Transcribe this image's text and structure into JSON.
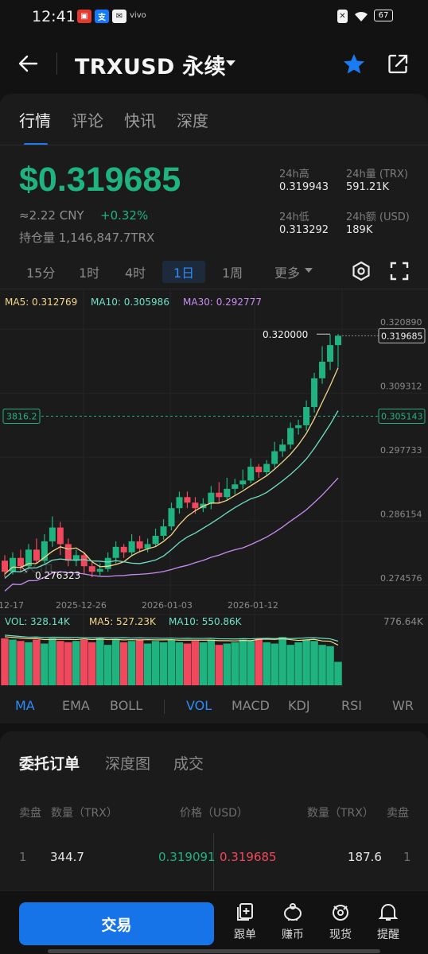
{
  "status_bar": {
    "time": "12:41",
    "notif_icons": [
      "app-icon-red",
      "alipay-icon",
      "mail-icon",
      "vivo-icon"
    ],
    "battery": "67"
  },
  "header": {
    "title": "TRXUSD 永续",
    "back_icon": "back-arrow-icon",
    "favorite_icon": "star-icon",
    "share_icon": "share-icon"
  },
  "tabs": [
    "行情",
    "评论",
    "快讯",
    "深度"
  ],
  "ticker": {
    "price": "$0.319685",
    "cny": "≈2.22 CNY",
    "change": "+0.32%",
    "open_interest": "持仓量 1,146,847.7TRX",
    "stats": {
      "high_label": "24h高",
      "high_value": "0.319943",
      "vol_trx_label": "24h量 (TRX)",
      "vol_trx_value": "591.21K",
      "low_label": "24h低",
      "low_value": "0.313292",
      "vol_usd_label": "24h额 (USD)",
      "vol_usd_value": "189K"
    }
  },
  "timeframes": [
    "15分",
    "1时",
    "4时",
    "1日",
    "1周",
    "更多"
  ],
  "active_timeframe": "1日",
  "chart_data": {
    "type": "candlestick",
    "ma_legend": {
      "ma5": "MA5: 0.312769",
      "ma10": "MA10: 0.305986",
      "ma30": "MA30: 0.292777"
    },
    "ma_colors": {
      "ma5": "#f5d78a",
      "ma10": "#6fe0c4",
      "ma30": "#c88cf0"
    },
    "y_ticks": [
      "0.320890",
      "0.309312",
      "0.297733",
      "0.286154",
      "0.274576"
    ],
    "y_range": [
      0.274576,
      0.32089
    ],
    "x_ticks": [
      "12-17",
      "2025-12-26",
      "2026-01-03",
      "2026-01-12"
    ],
    "current_price_tag": "0.319685",
    "crosshair_price_tag": "0.305143",
    "crosshair_left_tag": "3816.2",
    "high_annotation": "0.320000",
    "low_annotation": "0.276323",
    "watermark": "火币",
    "candles": [
      [
        0.279,
        0.277,
        0.28,
        0.276
      ],
      [
        0.277,
        0.2795,
        0.2805,
        0.2765
      ],
      [
        0.2795,
        0.278,
        0.281,
        0.277
      ],
      [
        0.278,
        0.281,
        0.282,
        0.2775
      ],
      [
        0.281,
        0.279,
        0.283,
        0.2785
      ],
      [
        0.279,
        0.2825,
        0.2838,
        0.2785
      ],
      [
        0.2825,
        0.285,
        0.287,
        0.2815
      ],
      [
        0.285,
        0.282,
        0.286,
        0.28
      ],
      [
        0.282,
        0.279,
        0.283,
        0.278
      ],
      [
        0.279,
        0.28,
        0.281,
        0.278
      ],
      [
        0.28,
        0.278,
        0.2805,
        0.2765
      ],
      [
        0.278,
        0.277,
        0.279,
        0.276
      ],
      [
        0.277,
        0.2775,
        0.2785,
        0.2763
      ],
      [
        0.2775,
        0.2795,
        0.2805,
        0.277
      ],
      [
        0.2795,
        0.2815,
        0.2825,
        0.2785
      ],
      [
        0.2815,
        0.2805,
        0.282,
        0.2795
      ],
      [
        0.2805,
        0.2825,
        0.2838,
        0.28
      ],
      [
        0.2825,
        0.2812,
        0.2835,
        0.2805
      ],
      [
        0.2812,
        0.282,
        0.283,
        0.2805
      ],
      [
        0.282,
        0.2835,
        0.2848,
        0.2815
      ],
      [
        0.2835,
        0.2852,
        0.2865,
        0.2828
      ],
      [
        0.2852,
        0.2885,
        0.2895,
        0.2845
      ],
      [
        0.2885,
        0.2905,
        0.2915,
        0.2875
      ],
      [
        0.2905,
        0.2895,
        0.2915,
        0.2885
      ],
      [
        0.2895,
        0.2885,
        0.2905,
        0.2875
      ],
      [
        0.2885,
        0.2893,
        0.2903,
        0.2878
      ],
      [
        0.2893,
        0.2913,
        0.2925,
        0.2883
      ],
      [
        0.2913,
        0.2905,
        0.2932,
        0.2895
      ],
      [
        0.2905,
        0.292,
        0.294,
        0.29
      ],
      [
        0.292,
        0.2928,
        0.2938,
        0.291
      ],
      [
        0.2928,
        0.2935,
        0.2955,
        0.292
      ],
      [
        0.2935,
        0.296,
        0.2975,
        0.293
      ],
      [
        0.296,
        0.295,
        0.2965,
        0.294
      ],
      [
        0.295,
        0.2965,
        0.2972,
        0.2943
      ],
      [
        0.2965,
        0.2988,
        0.3005,
        0.2958
      ],
      [
        0.2988,
        0.3,
        0.301,
        0.2978
      ],
      [
        0.3,
        0.303,
        0.304,
        0.2992
      ],
      [
        0.303,
        0.3035,
        0.3045,
        0.3018
      ],
      [
        0.3035,
        0.3068,
        0.308,
        0.3025
      ],
      [
        0.3068,
        0.312,
        0.313,
        0.3058
      ],
      [
        0.312,
        0.315,
        0.3178,
        0.311
      ],
      [
        0.315,
        0.318,
        0.3199,
        0.3135
      ],
      [
        0.318,
        0.3197,
        0.32,
        0.314
      ]
    ],
    "volume": {
      "legend_vol": "VOL: 328.14K",
      "legend_ma5": "MA5: 527.23K",
      "legend_ma10": "MA10: 550.86K",
      "max_label": "776.64K"
    }
  },
  "indicators": {
    "main": [
      "MA",
      "EMA",
      "BOLL"
    ],
    "sub": [
      "VOL",
      "MACD",
      "KDJ",
      "RSI",
      "WR"
    ],
    "active_main": "MA",
    "active_sub": "VOL"
  },
  "orders": {
    "tabs": [
      "委托订单",
      "深度图",
      "成交"
    ],
    "headers": {
      "sell_side": "卖盘",
      "qty_left": "数量（TRX）",
      "price": "价格（USD）",
      "qty_right": "数量（TRX）",
      "buy_side": "卖盘"
    },
    "row1": {
      "idx_left": "1",
      "qty_left": "344.7",
      "bid": "0.319091",
      "ask": "0.319685",
      "qty_right": "187.6",
      "idx_right": "1"
    }
  },
  "bottom_bar": {
    "trade": "交易",
    "nav": [
      {
        "label": "跟单",
        "icon": "copy-trade-icon"
      },
      {
        "label": "赚币",
        "icon": "piggy-bank-icon"
      },
      {
        "label": "现货",
        "icon": "spot-icon"
      },
      {
        "label": "提醒",
        "icon": "bell-icon"
      }
    ]
  },
  "colors": {
    "up": "#1fb37f",
    "down": "#f0485c",
    "accent": "#1a7cf5"
  }
}
